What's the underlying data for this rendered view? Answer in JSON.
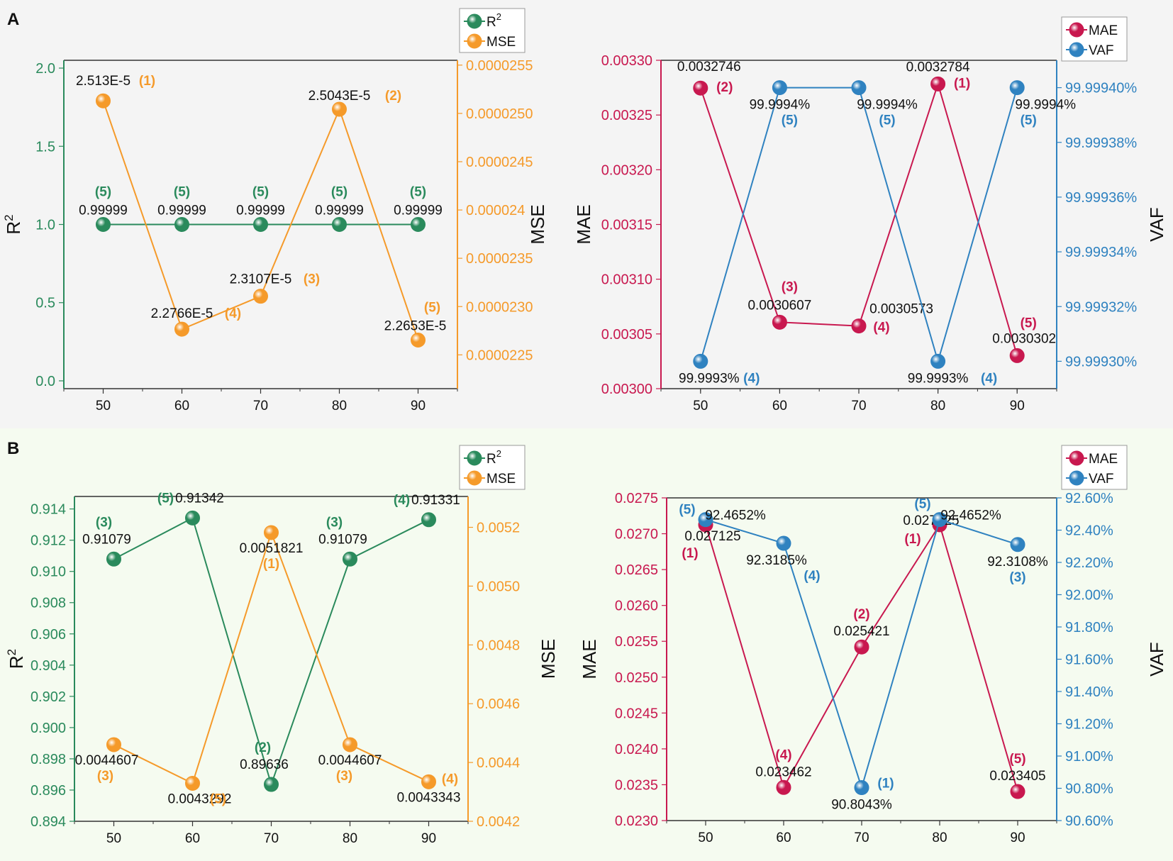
{
  "panels": {
    "A": {
      "label": "A"
    },
    "B": {
      "label": "B"
    }
  },
  "colors": {
    "r2": "#2a8a5c",
    "mse": "#f59a2a",
    "mae": "#c8184f",
    "vaf": "#2f82c0",
    "axis": "#333333",
    "text": "#111111"
  },
  "chart_data": [
    {
      "id": "A-left",
      "type": "line",
      "panel": "A",
      "x": [
        50,
        60,
        70,
        80,
        90
      ],
      "xlim": [
        45,
        95
      ],
      "xticks": [
        "50",
        "60",
        "70",
        "80",
        "90"
      ],
      "left_axis": {
        "label": "R",
        "label_sup": "2",
        "lim": [
          -0.05,
          2.05
        ],
        "ticks": [
          0.0,
          0.5,
          1.0,
          1.5,
          2.0
        ],
        "tick_labels": [
          "0.0",
          "0.5",
          "1.0",
          "1.5",
          "2.0"
        ]
      },
      "right_axis": {
        "label": "MSE",
        "lim": [
          2.215e-05,
          2.555e-05
        ],
        "ticks": [
          2.25e-05,
          2.3e-05,
          2.35e-05,
          2.4e-05,
          2.45e-05,
          2.5e-05,
          2.55e-05
        ],
        "tick_labels": [
          "0.0000225",
          "0.0000230",
          "0.0000235",
          "0.000024",
          "0.0000245",
          "0.0000250",
          "0.0000255"
        ]
      },
      "legend": [
        {
          "name": "R",
          "sup": "2"
        },
        {
          "name": "MSE",
          "sup": ""
        }
      ],
      "series": [
        {
          "name": "R2",
          "axis": "left",
          "color": "r2",
          "values": [
            0.99999,
            0.99999,
            0.99999,
            0.99999,
            0.99999
          ],
          "labels": [
            "0.99999",
            "0.99999",
            "0.99999",
            "0.99999",
            "0.99999"
          ],
          "ranks": [
            "(5)",
            "(5)",
            "(5)",
            "(5)",
            "(5)"
          ]
        },
        {
          "name": "MSE",
          "axis": "right",
          "color": "mse",
          "values": [
            2.513e-05,
            2.2766e-05,
            2.3107e-05,
            2.5043e-05,
            2.2653e-05
          ],
          "labels": [
            "2.513E-5",
            "2.2766E-5",
            "2.3107E-5",
            "2.5043E-5",
            "2.2653E-5"
          ],
          "ranks": [
            "(1)",
            "(4)",
            "(3)",
            "(2)",
            "(5)"
          ]
        }
      ]
    },
    {
      "id": "A-right",
      "type": "line",
      "panel": "A",
      "x": [
        50,
        60,
        70,
        80,
        90
      ],
      "xlim": [
        45,
        95
      ],
      "xticks": [
        "50",
        "60",
        "70",
        "80",
        "90"
      ],
      "left_axis": {
        "label": "MAE",
        "lim": [
          0.003,
          0.0033
        ],
        "ticks": [
          0.003,
          0.00305,
          0.0031,
          0.00315,
          0.0032,
          0.00325,
          0.0033
        ],
        "tick_labels": [
          "0.00300",
          "0.00305",
          "0.00310",
          "0.00315",
          "0.00320",
          "0.00325",
          "0.00330"
        ]
      },
      "right_axis": {
        "label": "VAF",
        "lim": [
          99.99929,
          99.99941
        ],
        "ticks": [
          99.9993,
          99.99932,
          99.99934,
          99.99936,
          99.99938,
          99.9994
        ],
        "tick_labels": [
          "99.99930%",
          "99.99932%",
          "99.99934%",
          "99.99936%",
          "99.99938%",
          "99.99940%"
        ]
      },
      "legend": [
        {
          "name": "MAE",
          "sup": ""
        },
        {
          "name": "VAF",
          "sup": ""
        }
      ],
      "series": [
        {
          "name": "MAE",
          "axis": "left",
          "color": "mae",
          "values": [
            0.0032746,
            0.0030607,
            0.0030573,
            0.0032784,
            0.0030302
          ],
          "labels": [
            "0.0032746",
            "0.0030607",
            "0.0030573",
            "0.0032784",
            "0.0030302"
          ],
          "ranks": [
            "(2)",
            "(3)",
            "(4)",
            "(1)",
            "(5)"
          ]
        },
        {
          "name": "VAF",
          "axis": "right",
          "color": "vaf",
          "values": [
            99.9993,
            99.9994,
            99.9994,
            99.9993,
            99.9994
          ],
          "labels": [
            "99.9993%",
            "99.9994%",
            "99.9994%",
            "99.9993%",
            "99.9994%"
          ],
          "ranks": [
            "(4)",
            "(5)",
            "(5)",
            "(4)",
            "(5)"
          ]
        }
      ]
    },
    {
      "id": "B-left",
      "type": "line",
      "panel": "B",
      "x": [
        50,
        60,
        70,
        80,
        90
      ],
      "xlim": [
        45,
        95
      ],
      "xticks": [
        "50",
        "60",
        "70",
        "80",
        "90"
      ],
      "left_axis": {
        "label": "R",
        "label_sup": "2",
        "lim": [
          0.894,
          0.9148
        ],
        "ticks": [
          0.894,
          0.896,
          0.898,
          0.9,
          0.902,
          0.904,
          0.906,
          0.908,
          0.91,
          0.912,
          0.914
        ],
        "tick_labels": [
          "0.894",
          "0.896",
          "0.898",
          "0.900",
          "0.902",
          "0.904",
          "0.906",
          "0.908",
          "0.910",
          "0.912",
          "0.914"
        ]
      },
      "right_axis": {
        "label": "MSE",
        "lim": [
          0.0042,
          0.005305
        ],
        "ticks": [
          0.0042,
          0.0044,
          0.0046,
          0.0048,
          0.005,
          0.0052
        ],
        "tick_labels": [
          "0.0042",
          "0.0044",
          "0.0046",
          "0.0048",
          "0.0050",
          "0.0052"
        ]
      },
      "legend": [
        {
          "name": "R",
          "sup": "2"
        },
        {
          "name": "MSE",
          "sup": ""
        }
      ],
      "series": [
        {
          "name": "R2",
          "axis": "left",
          "color": "r2",
          "values": [
            0.91079,
            0.91342,
            0.89636,
            0.91079,
            0.91331
          ],
          "labels": [
            "0.91079",
            "0.91342",
            "0.89636",
            "0.91079",
            "0.91331"
          ],
          "ranks": [
            "(3)",
            "(5)",
            "(2)",
            "(3)",
            "(4)"
          ]
        },
        {
          "name": "MSE",
          "axis": "right",
          "color": "mse",
          "values": [
            0.0044607,
            0.0043292,
            0.0051821,
            0.0044607,
            0.0043343
          ],
          "labels": [
            "0.0044607",
            "0.0043292",
            "0.0051821",
            "0.0044607",
            "0.0043343"
          ],
          "ranks": [
            "(3)",
            "(5)",
            "(1)",
            "(3)",
            "(4)"
          ]
        }
      ]
    },
    {
      "id": "B-right",
      "type": "line",
      "panel": "B",
      "x": [
        50,
        60,
        70,
        80,
        90
      ],
      "xlim": [
        45,
        95
      ],
      "xticks": [
        "50",
        "60",
        "70",
        "80",
        "90"
      ],
      "left_axis": {
        "label": "MAE",
        "lim": [
          0.023,
          0.0275
        ],
        "ticks": [
          0.023,
          0.0235,
          0.024,
          0.0245,
          0.025,
          0.0255,
          0.026,
          0.0265,
          0.027,
          0.0275
        ],
        "tick_labels": [
          "0.0230",
          "0.0235",
          "0.0240",
          "0.0245",
          "0.0250",
          "0.0255",
          "0.0260",
          "0.0265",
          "0.0270",
          "0.0275"
        ]
      },
      "right_axis": {
        "label": "VAF",
        "lim": [
          90.6,
          92.6
        ],
        "ticks": [
          90.6,
          90.8,
          91.0,
          91.2,
          91.4,
          91.6,
          91.8,
          92.0,
          92.2,
          92.4,
          92.6
        ],
        "tick_labels": [
          "90.60%",
          "90.80%",
          "91.00%",
          "91.20%",
          "91.40%",
          "91.60%",
          "91.80%",
          "92.00%",
          "92.20%",
          "92.40%",
          "92.60%"
        ]
      },
      "legend": [
        {
          "name": "MAE",
          "sup": ""
        },
        {
          "name": "VAF",
          "sup": ""
        }
      ],
      "series": [
        {
          "name": "MAE",
          "axis": "left",
          "color": "mae",
          "values": [
            0.027125,
            0.023462,
            0.025421,
            0.027125,
            0.023405
          ],
          "labels": [
            "0.027125",
            "0.023462",
            "0.025421",
            "0.027125",
            "0.023405"
          ],
          "ranks": [
            "(1)",
            "(4)",
            "(2)",
            "(1)",
            "(5)"
          ]
        },
        {
          "name": "VAF",
          "axis": "right",
          "color": "vaf",
          "values": [
            92.4652,
            92.3185,
            90.8043,
            92.4652,
            92.3108
          ],
          "labels": [
            "92.4652%",
            "92.3185%",
            "90.8043%",
            "92.4652%",
            "92.3108%"
          ],
          "ranks": [
            "(5)",
            "(4)",
            "(1)",
            "(5)",
            "(3)"
          ]
        }
      ]
    }
  ]
}
